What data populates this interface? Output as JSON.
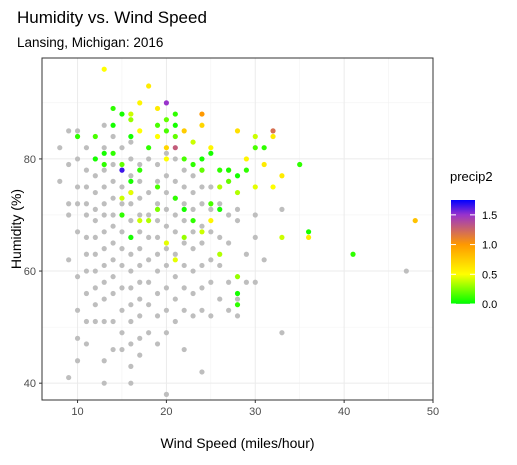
{
  "chart_data": {
    "type": "scatter",
    "title": "Humidity vs. Wind Speed",
    "subtitle": "Lansing, Michigan: 2016",
    "xlabel": "Wind Speed (miles/hour)",
    "ylabel": "Humidity (%)",
    "xlim": [
      6,
      50
    ],
    "ylim": [
      37,
      98
    ],
    "x_ticks": [
      10,
      20,
      30,
      40,
      50
    ],
    "y_ticks": [
      40,
      60,
      80
    ],
    "x_tick_labels": [
      "10",
      "20",
      "30",
      "40",
      "50"
    ],
    "y_tick_labels": [
      "40",
      "60",
      "80"
    ],
    "grid": true,
    "legend": {
      "title": "precip2",
      "placement": "right",
      "color_scale": [
        "#bebebe",
        "#00ff00",
        "#ffff00",
        "#ff9900",
        "#9933cc",
        "#0000ff"
      ],
      "stops": [
        0.0,
        0.01,
        0.5,
        1.0,
        1.5,
        1.75
      ],
      "range": [
        0,
        1.75
      ],
      "ticks": [
        0.0,
        0.5,
        1.0,
        1.5
      ],
      "tick_labels": [
        "0.0",
        "0.5",
        "1.0",
        "1.5"
      ]
    },
    "points": [
      [
        8,
        82,
        0
      ],
      [
        8,
        76,
        0
      ],
      [
        9,
        85,
        0
      ],
      [
        9,
        79,
        0
      ],
      [
        9,
        72,
        0
      ],
      [
        9,
        70,
        0
      ],
      [
        9,
        62,
        0
      ],
      [
        9,
        41,
        0
      ],
      [
        10,
        85,
        0
      ],
      [
        10,
        80,
        0
      ],
      [
        10,
        75,
        0
      ],
      [
        10,
        72,
        0
      ],
      [
        10,
        67,
        0
      ],
      [
        10,
        59,
        0
      ],
      [
        10,
        53,
        0
      ],
      [
        10,
        48,
        0
      ],
      [
        10,
        44,
        0
      ],
      [
        11,
        82,
        0
      ],
      [
        11,
        78,
        0
      ],
      [
        11,
        75,
        0
      ],
      [
        11,
        72,
        0
      ],
      [
        11,
        70,
        0
      ],
      [
        11,
        66,
        0
      ],
      [
        11,
        63,
        0
      ],
      [
        11,
        60,
        0
      ],
      [
        11,
        56,
        0
      ],
      [
        11,
        51,
        0
      ],
      [
        11,
        47,
        0
      ],
      [
        12,
        80,
        0
      ],
      [
        12,
        77,
        0
      ],
      [
        12,
        74,
        0
      ],
      [
        12,
        71,
        0
      ],
      [
        12,
        69,
        0
      ],
      [
        12,
        66,
        0
      ],
      [
        12,
        63,
        0
      ],
      [
        12,
        60,
        0
      ],
      [
        12,
        57,
        0
      ],
      [
        12,
        54,
        0
      ],
      [
        12,
        51,
        0
      ],
      [
        13,
        86,
        0
      ],
      [
        13,
        82,
        0
      ],
      [
        13,
        78,
        0
      ],
      [
        13,
        75,
        0
      ],
      [
        13,
        72,
        0
      ],
      [
        13,
        70,
        0
      ],
      [
        13,
        67,
        0
      ],
      [
        13,
        64,
        0
      ],
      [
        13,
        61,
        0
      ],
      [
        13,
        58,
        0
      ],
      [
        13,
        55,
        0
      ],
      [
        13,
        51,
        0
      ],
      [
        13,
        44,
        0
      ],
      [
        13,
        40,
        0
      ],
      [
        14,
        84,
        0
      ],
      [
        14,
        79,
        0
      ],
      [
        14,
        76,
        0
      ],
      [
        14,
        73,
        0
      ],
      [
        14,
        70,
        0
      ],
      [
        14,
        68,
        0
      ],
      [
        14,
        65,
        0
      ],
      [
        14,
        62,
        0
      ],
      [
        14,
        59,
        0
      ],
      [
        14,
        56,
        0
      ],
      [
        14,
        51,
        0
      ],
      [
        14,
        46,
        0
      ],
      [
        15,
        82,
        0
      ],
      [
        15,
        78,
        0
      ],
      [
        15,
        75,
        0
      ],
      [
        15,
        72,
        0
      ],
      [
        15,
        70,
        0
      ],
      [
        15,
        67,
        0
      ],
      [
        15,
        64,
        0
      ],
      [
        15,
        61,
        0
      ],
      [
        15,
        57,
        0
      ],
      [
        15,
        53,
        0
      ],
      [
        15,
        49,
        0
      ],
      [
        15,
        46,
        0
      ],
      [
        16,
        83,
        0
      ],
      [
        16,
        80,
        0
      ],
      [
        16,
        77,
        0
      ],
      [
        16,
        74,
        0
      ],
      [
        16,
        72,
        0
      ],
      [
        16,
        69,
        0
      ],
      [
        16,
        66,
        0
      ],
      [
        16,
        63,
        0
      ],
      [
        16,
        60,
        0
      ],
      [
        16,
        57,
        0
      ],
      [
        16,
        54,
        0
      ],
      [
        16,
        51,
        0
      ],
      [
        16,
        47,
        0
      ],
      [
        16,
        43,
        0
      ],
      [
        16,
        40,
        0
      ],
      [
        17,
        79,
        0
      ],
      [
        17,
        76,
        0
      ],
      [
        17,
        73,
        0
      ],
      [
        17,
        70,
        0
      ],
      [
        17,
        67,
        0
      ],
      [
        17,
        64,
        0
      ],
      [
        17,
        61,
        0
      ],
      [
        17,
        58,
        0
      ],
      [
        17,
        55,
        0
      ],
      [
        17,
        52,
        0
      ],
      [
        17,
        48,
        0
      ],
      [
        17,
        45,
        0
      ],
      [
        18,
        80,
        0
      ],
      [
        18,
        74,
        0
      ],
      [
        18,
        70,
        0
      ],
      [
        18,
        66,
        0
      ],
      [
        18,
        62,
        0
      ],
      [
        18,
        58,
        0
      ],
      [
        18,
        54,
        0
      ],
      [
        18,
        49,
        0
      ],
      [
        19,
        79,
        0
      ],
      [
        19,
        76,
        0
      ],
      [
        19,
        72,
        0
      ],
      [
        19,
        69,
        0
      ],
      [
        19,
        66,
        0
      ],
      [
        19,
        63,
        0
      ],
      [
        19,
        60,
        0
      ],
      [
        19,
        56,
        0
      ],
      [
        19,
        52,
        0
      ],
      [
        19,
        47,
        0
      ],
      [
        20,
        81,
        0
      ],
      [
        20,
        77,
        0
      ],
      [
        20,
        74,
        0
      ],
      [
        20,
        71,
        0
      ],
      [
        20,
        68,
        0
      ],
      [
        20,
        64,
        0
      ],
      [
        20,
        61,
        0
      ],
      [
        20,
        57,
        0
      ],
      [
        20,
        53,
        0
      ],
      [
        20,
        49,
        0
      ],
      [
        20,
        38,
        0
      ],
      [
        21,
        80,
        0
      ],
      [
        21,
        76,
        0
      ],
      [
        21,
        73,
        0
      ],
      [
        21,
        70,
        0
      ],
      [
        21,
        67,
        0
      ],
      [
        21,
        63,
        0
      ],
      [
        21,
        59,
        0
      ],
      [
        21,
        55,
        0
      ],
      [
        21,
        51,
        0
      ],
      [
        22,
        78,
        0
      ],
      [
        22,
        75,
        0
      ],
      [
        22,
        72,
        0
      ],
      [
        22,
        69,
        0
      ],
      [
        22,
        65,
        0
      ],
      [
        22,
        61,
        0
      ],
      [
        22,
        57,
        0
      ],
      [
        22,
        53,
        0
      ],
      [
        22,
        46,
        0
      ],
      [
        23,
        77,
        0
      ],
      [
        23,
        74,
        0
      ],
      [
        23,
        71,
        0
      ],
      [
        23,
        67,
        0
      ],
      [
        23,
        64,
        0
      ],
      [
        23,
        60,
        0
      ],
      [
        23,
        56,
        0
      ],
      [
        23,
        52,
        0
      ],
      [
        24,
        78,
        0
      ],
      [
        24,
        75,
        0
      ],
      [
        24,
        72,
        0
      ],
      [
        24,
        68,
        0
      ],
      [
        24,
        65,
        0
      ],
      [
        24,
        61,
        0
      ],
      [
        24,
        57,
        0
      ],
      [
        24,
        53,
        0
      ],
      [
        24,
        42,
        0
      ],
      [
        25,
        75,
        0
      ],
      [
        25,
        71,
        0
      ],
      [
        25,
        67,
        0
      ],
      [
        25,
        62,
        0
      ],
      [
        25,
        58,
        0
      ],
      [
        25,
        52,
        0
      ],
      [
        26,
        72,
        0
      ],
      [
        26,
        66,
        0
      ],
      [
        26,
        61,
        0
      ],
      [
        26,
        55,
        0
      ],
      [
        27,
        76,
        0
      ],
      [
        27,
        70,
        0
      ],
      [
        27,
        65,
        0
      ],
      [
        27,
        58,
        0
      ],
      [
        27,
        53,
        0
      ],
      [
        28,
        71,
        0
      ],
      [
        28,
        69,
        0
      ],
      [
        28,
        55,
        0
      ],
      [
        28,
        52,
        0
      ],
      [
        29,
        63,
        0
      ],
      [
        29,
        58,
        0
      ],
      [
        30,
        70,
        0
      ],
      [
        30,
        66,
        0
      ],
      [
        30,
        58,
        0
      ],
      [
        31,
        62,
        0
      ],
      [
        33,
        71,
        0
      ],
      [
        33,
        49,
        0
      ],
      [
        47,
        60,
        0
      ],
      [
        13,
        96,
        0.5
      ],
      [
        18,
        93,
        0.6
      ],
      [
        16,
        88,
        0.4
      ],
      [
        17,
        90,
        0.55
      ],
      [
        19,
        89,
        0.6
      ],
      [
        16,
        87,
        0.3
      ],
      [
        17,
        85,
        0.5
      ],
      [
        19,
        84,
        0.5
      ],
      [
        20,
        82,
        0.7
      ],
      [
        22,
        85,
        0.75
      ],
      [
        23,
        83,
        0.4
      ],
      [
        24,
        86,
        0.7
      ],
      [
        25,
        82,
        0.55
      ],
      [
        27,
        78,
        0.8
      ],
      [
        28,
        85,
        0.65
      ],
      [
        30,
        84,
        0.4
      ],
      [
        32,
        84,
        0.6
      ],
      [
        32,
        75,
        0.5
      ],
      [
        30,
        75,
        0.45
      ],
      [
        28,
        74,
        0.35
      ],
      [
        29,
        80,
        0.55
      ],
      [
        31,
        79,
        0.6
      ],
      [
        33,
        77,
        0.6
      ],
      [
        15,
        73,
        0.4
      ],
      [
        16,
        74,
        0.45
      ],
      [
        18,
        69,
        0.35
      ],
      [
        20,
        65,
        0.45
      ],
      [
        22,
        66,
        0.3
      ],
      [
        24,
        67,
        0.4
      ],
      [
        25,
        69,
        0.55
      ],
      [
        26,
        63,
        0.35
      ],
      [
        17,
        69,
        0.4
      ],
      [
        20,
        80,
        0.5
      ],
      [
        21,
        62,
        0.45
      ],
      [
        26,
        75,
        0.35
      ],
      [
        33,
        66,
        0.4
      ],
      [
        36,
        66,
        0.6
      ],
      [
        48,
        69,
        0.8
      ],
      [
        28,
        59,
        0.3
      ],
      [
        19,
        71,
        0.25
      ],
      [
        10,
        84,
        0.1
      ],
      [
        12,
        84,
        0.15
      ],
      [
        12,
        80,
        0.05
      ],
      [
        13,
        81,
        0.05
      ],
      [
        13,
        79,
        0.1
      ],
      [
        14,
        89,
        0.1
      ],
      [
        14,
        86,
        0.05
      ],
      [
        14,
        81,
        0.1
      ],
      [
        15,
        88,
        0.05
      ],
      [
        16,
        84,
        0.05
      ],
      [
        15,
        79,
        0.2
      ],
      [
        16,
        76,
        0.05
      ],
      [
        17,
        78,
        0.1
      ],
      [
        18,
        82,
        0.1
      ],
      [
        19,
        86,
        0.15
      ],
      [
        20,
        87,
        0.2
      ],
      [
        20,
        85,
        0.15
      ],
      [
        21,
        88,
        0.1
      ],
      [
        21,
        86,
        0.05
      ],
      [
        21,
        84,
        0.2
      ],
      [
        22,
        80,
        0.15
      ],
      [
        23,
        79,
        0.1
      ],
      [
        24,
        80,
        0.05
      ],
      [
        24,
        78,
        0.2
      ],
      [
        25,
        81,
        0.05
      ],
      [
        26,
        78,
        0.1
      ],
      [
        27,
        78,
        0.05
      ],
      [
        27,
        76,
        0.2
      ],
      [
        28,
        77,
        0.05
      ],
      [
        29,
        78,
        0.1
      ],
      [
        30,
        82,
        0.15
      ],
      [
        31,
        82,
        0.1
      ],
      [
        35,
        79,
        0.1
      ],
      [
        36,
        67,
        0.05
      ],
      [
        41,
        63,
        0.1
      ],
      [
        22,
        71,
        0.05
      ],
      [
        23,
        69,
        0.1
      ],
      [
        25,
        72,
        0.15
      ],
      [
        28,
        56,
        0.05
      ],
      [
        28,
        54,
        0.1
      ],
      [
        26,
        71,
        0.05
      ],
      [
        21,
        73,
        0.1
      ],
      [
        15,
        70,
        0.1
      ],
      [
        16,
        66,
        0.05
      ],
      [
        19,
        75,
        0.15
      ],
      [
        20,
        90,
        1.5
      ],
      [
        24,
        88,
        1.0
      ],
      [
        32,
        85,
        1.2
      ],
      [
        21,
        82,
        1.3
      ],
      [
        15,
        78,
        1.65
      ]
    ]
  }
}
